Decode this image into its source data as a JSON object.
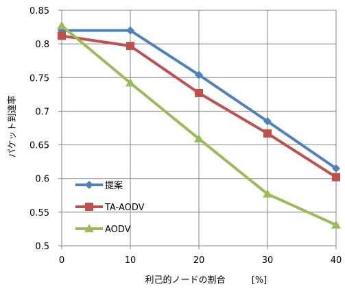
{
  "chart_data": {
    "type": "line",
    "title": "",
    "xlabel": "利己的ノードの割合",
    "xunit": "[%]",
    "ylabel": "パケット到達率",
    "x": [
      0,
      10,
      20,
      30,
      40
    ],
    "xlim": [
      0,
      40
    ],
    "ylim": [
      0.5,
      0.85
    ],
    "xticks": [
      "0",
      "10",
      "20",
      "30",
      "40"
    ],
    "yticks": [
      "0.5",
      "0.55",
      "0.6",
      "0.65",
      "0.7",
      "0.75",
      "0.8",
      "0.85"
    ],
    "grid": true,
    "legend_position": "bottom-left",
    "series": [
      {
        "name": "提案",
        "values": [
          0.82,
          0.82,
          0.754,
          0.685,
          0.615
        ],
        "color": "#4F81BD",
        "marker": "diamond"
      },
      {
        "name": "TA-AODV",
        "values": [
          0.812,
          0.797,
          0.727,
          0.667,
          0.602
        ],
        "color": "#C0504D",
        "marker": "square"
      },
      {
        "name": "AODV",
        "values": [
          0.827,
          0.742,
          0.659,
          0.577,
          0.531
        ],
        "color": "#9BBB59",
        "marker": "triangle"
      }
    ]
  }
}
